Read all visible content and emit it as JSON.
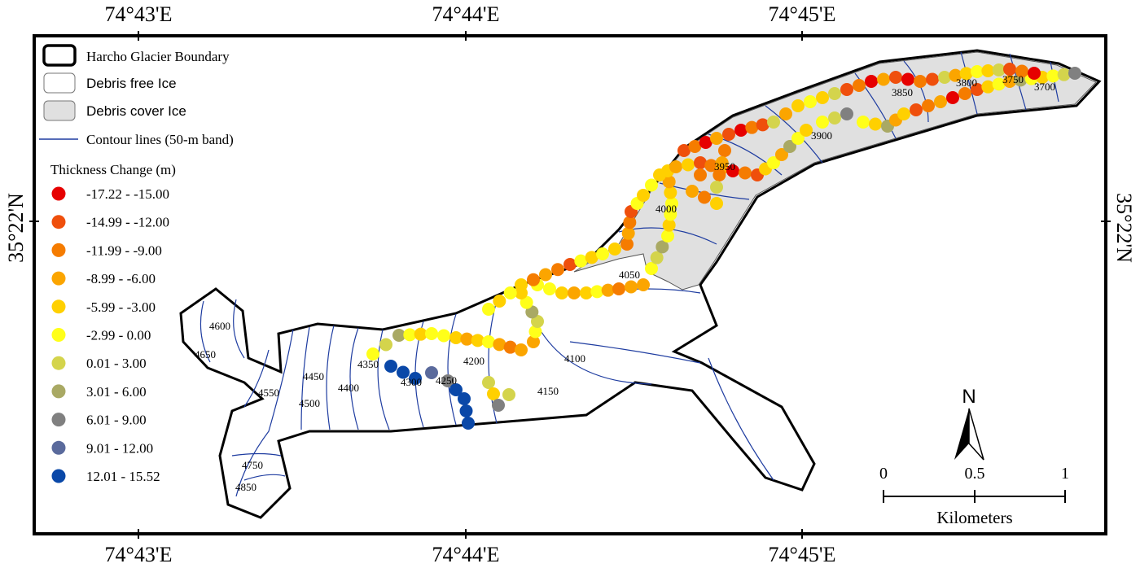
{
  "map": {
    "graticule": {
      "top": [
        "74°43'E",
        "74°44'E",
        "74°45'E"
      ],
      "bottom": [
        "74°43'E",
        "74°44'E",
        "74°45'E"
      ],
      "left": [
        "35°22'N"
      ],
      "right": [
        "35°22'N"
      ]
    },
    "legend": {
      "items": [
        {
          "label": "Harcho Glacier Boundary"
        },
        {
          "label": "Debris free Ice"
        },
        {
          "label": "Debris cover Ice"
        },
        {
          "label": "Contour lines (50-m band)"
        }
      ],
      "title": "Thickness Change (m)",
      "classes": [
        {
          "label": "-17.22 - -15.00",
          "color": "#e60000"
        },
        {
          "label": "-14.99 - -12.00",
          "color": "#ef4f0c"
        },
        {
          "label": "-11.99 - -9.00",
          "color": "#f57c00"
        },
        {
          "label": "-8.99 - -6.00",
          "color": "#fba500"
        },
        {
          "label": "-5.99 - -3.00",
          "color": "#ffd000"
        },
        {
          "label": "-2.99 - 0.00",
          "color": "#ffff1a"
        },
        {
          "label": "0.01 - 3.00",
          "color": "#d4d44c"
        },
        {
          "label": "3.01 - 6.00",
          "color": "#a9a964"
        },
        {
          "label": "6.01 - 9.00",
          "color": "#808080"
        },
        {
          "label": "9.01 - 12.00",
          "color": "#5a6a9c"
        },
        {
          "label": "12.01 - 15.52",
          "color": "#0a48a8"
        }
      ]
    },
    "contours": [
      {
        "label": "4600"
      },
      {
        "label": "4650"
      },
      {
        "label": "4550"
      },
      {
        "label": "4500"
      },
      {
        "label": "4450"
      },
      {
        "label": "4400"
      },
      {
        "label": "4350"
      },
      {
        "label": "4300"
      },
      {
        "label": "4250"
      },
      {
        "label": "4200"
      },
      {
        "label": "4150"
      },
      {
        "label": "4100"
      },
      {
        "label": "4050"
      },
      {
        "label": "4000"
      },
      {
        "label": "3950"
      },
      {
        "label": "3900"
      },
      {
        "label": "3850"
      },
      {
        "label": "3800"
      },
      {
        "label": "3750"
      },
      {
        "label": "3700"
      },
      {
        "label": "4750"
      },
      {
        "label": "4850"
      }
    ],
    "scale": {
      "ticks": [
        "0",
        "0.5",
        "1"
      ],
      "unit": "Kilometers"
    },
    "north": "N"
  }
}
